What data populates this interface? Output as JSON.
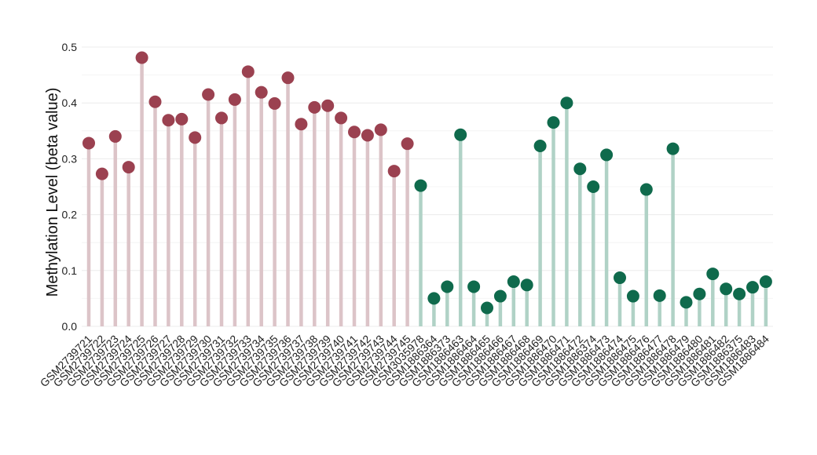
{
  "chart_data": {
    "type": "lollipop",
    "title": "",
    "xlabel": "",
    "ylabel": "Methylation Level (beta value)",
    "ylim": [
      0,
      0.5
    ],
    "yticks": [
      "0.0",
      "0.1",
      "0.2",
      "0.3",
      "0.4",
      "0.5"
    ],
    "grid": true,
    "groups": [
      {
        "color": "#9b4150",
        "stem_color": "#dcc4c8"
      },
      {
        "color": "#0f6a4c",
        "stem_color": "#b0d2c6"
      }
    ],
    "categories": [
      "GSM2739721",
      "GSM2739722",
      "GSM2739723",
      "GSM2739724",
      "GSM2739725",
      "GSM2739726",
      "GSM2739727",
      "GSM2739728",
      "GSM2739729",
      "GSM2739730",
      "GSM2739731",
      "GSM2739732",
      "GSM2739733",
      "GSM2739734",
      "GSM2739735",
      "GSM2739736",
      "GSM2739737",
      "GSM2739738",
      "GSM2739739",
      "GSM2739740",
      "GSM2739741",
      "GSM2739742",
      "GSM2739743",
      "GSM2739744",
      "GSM2739745",
      "GSM3035978",
      "GSM1886364",
      "GSM1886373",
      "GSM1886463",
      "GSM1886464",
      "GSM1886465",
      "GSM1886466",
      "GSM1886467",
      "GSM1886468",
      "GSM1886469",
      "GSM1886470",
      "GSM1886471",
      "GSM1886472",
      "GSM1886374",
      "GSM1886473",
      "GSM1886474",
      "GSM1886475",
      "GSM1886476",
      "GSM1886477",
      "GSM1886478",
      "GSM1886479",
      "GSM1886480",
      "GSM1886481",
      "GSM1886482",
      "GSM1886375",
      "GSM1886483",
      "GSM1886484"
    ],
    "values": [
      0.328,
      0.273,
      0.34,
      0.285,
      0.481,
      0.402,
      0.369,
      0.371,
      0.338,
      0.415,
      0.373,
      0.406,
      0.456,
      0.419,
      0.399,
      0.445,
      0.362,
      0.392,
      0.395,
      0.373,
      0.348,
      0.342,
      0.352,
      0.278,
      0.327,
      0.252,
      0.05,
      0.071,
      0.343,
      0.071,
      0.033,
      0.054,
      0.08,
      0.074,
      0.323,
      0.365,
      0.4,
      0.282,
      0.25,
      0.307,
      0.087,
      0.054,
      0.245,
      0.055,
      0.318,
      0.043,
      0.058,
      0.094,
      0.067,
      0.058,
      0.07,
      0.08
    ],
    "group_index": [
      0,
      0,
      0,
      0,
      0,
      0,
      0,
      0,
      0,
      0,
      0,
      0,
      0,
      0,
      0,
      0,
      0,
      0,
      0,
      0,
      0,
      0,
      0,
      0,
      0,
      1,
      1,
      1,
      1,
      1,
      1,
      1,
      1,
      1,
      1,
      1,
      1,
      1,
      1,
      1,
      1,
      1,
      1,
      1,
      1,
      1,
      1,
      1,
      1,
      1,
      1,
      1
    ]
  }
}
